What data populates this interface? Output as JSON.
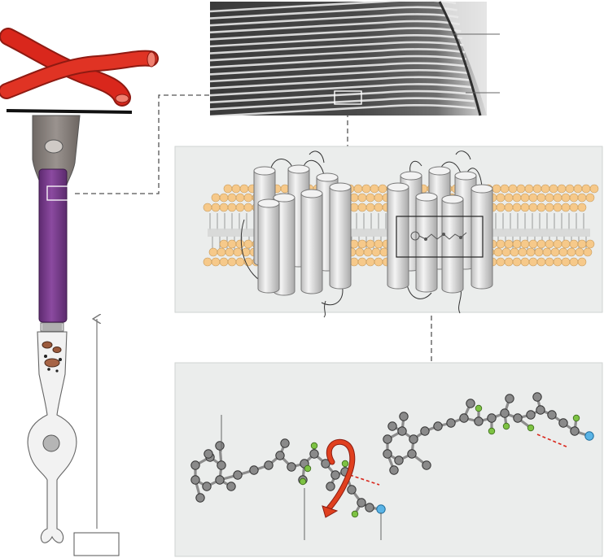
{
  "figure": {
    "description_labels": [],
    "label_box_text": ""
  },
  "colors": {
    "blood_vessel": "#d9271c",
    "outer_segment": "#7a3b8f",
    "inner_segment": "#8a837f",
    "lipid_head": "#f6c98a",
    "panel_bg": "#ebedec",
    "carbon": "#8a8a8a",
    "hydrogen": "#7dc243",
    "nitrogen": "#5ab4e6",
    "rotation_arrow": "#e0401f",
    "cleavage_line": "#d9271c"
  },
  "panels": {
    "micrograph": {
      "name": "electron-micrograph-disc-stack"
    },
    "membrane": {
      "name": "rhodopsin-membrane-model",
      "helix_count_left": 7,
      "helix_count_right": 7
    },
    "molecules": {
      "name": "retinal-isomer-models",
      "isomers": [
        "11-cis-retinal",
        "all-trans-retinal"
      ]
    }
  }
}
